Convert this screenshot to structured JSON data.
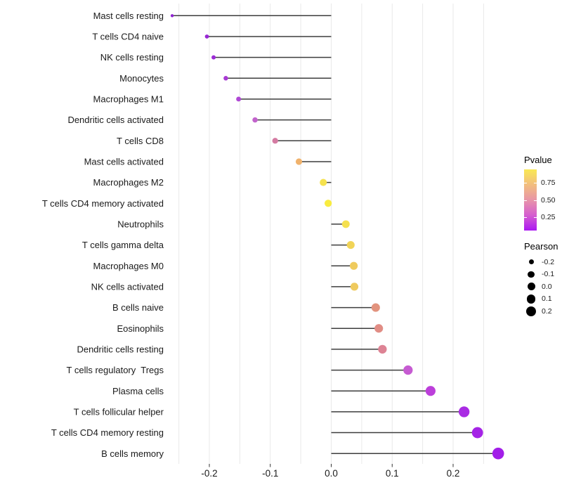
{
  "chart_data": {
    "type": "scatter",
    "subtype": "lollipop",
    "title": "",
    "xlabel": "",
    "ylabel": "",
    "xlim": [
      -0.285,
      0.3
    ],
    "grid": "vertical-only",
    "gridline_values": [
      -0.25,
      -0.2,
      -0.15,
      -0.1,
      -0.05,
      0.0,
      0.05,
      0.1,
      0.15,
      0.2,
      0.25
    ],
    "x_ticks": [
      -0.2,
      -0.1,
      0.0,
      0.1,
      0.2
    ],
    "x_tick_labels": [
      "-0.2",
      "-0.1",
      "0.0",
      "0.1",
      "0.2"
    ],
    "categories": [
      "Mast cells resting",
      "T cells CD4 naive",
      "NK cells resting",
      "Monocytes",
      "Macrophages M1",
      "Dendritic cells activated",
      "T cells CD8",
      "Mast cells activated",
      "Macrophages M2",
      "T cells CD4 memory activated",
      "Neutrophils",
      "T cells gamma delta",
      "Macrophages M0",
      "NK cells activated",
      "B cells naive",
      "Eosinophils",
      "Dendritic cells resting",
      "T cells regulatory  Tregs",
      "Plasma cells",
      "T cells follicular helper",
      "T cells CD4 memory resting",
      "B cells memory"
    ],
    "pearson": [
      -0.261,
      -0.204,
      -0.193,
      -0.173,
      -0.152,
      -0.125,
      -0.092,
      -0.053,
      -0.013,
      -0.005,
      0.024,
      0.032,
      0.037,
      0.038,
      0.073,
      0.078,
      0.084,
      0.126,
      0.163,
      0.218,
      0.24,
      0.274
    ],
    "dot_colors": [
      "#8F22D1",
      "#9827D4",
      "#9C2CD5",
      "#A83AD4",
      "#AF48D5",
      "#C263CC",
      "#D47BA2",
      "#F0B26C",
      "#F5E24E",
      "#F9EC40",
      "#F5E04F",
      "#F1D457",
      "#EFCB5E",
      "#EFCA5E",
      "#E2937E",
      "#E18D85",
      "#DD8394",
      "#C65BD2",
      "#BC3FDA",
      "#A92BE3",
      "#A524E6",
      "#A21EE8"
    ],
    "legend_position": "right"
  },
  "legends": {
    "pvalue": {
      "title": "Pvalue",
      "tick_labels": [
        "0.75",
        "0.50",
        "0.25"
      ],
      "tick_values": [
        0.75,
        0.5,
        0.25
      ],
      "range": [
        0.95,
        0.05
      ],
      "gradient_colors": [
        "#F9E854",
        "#F2BE7E",
        "#E895A8",
        "#D55ECF",
        "#AA18F2"
      ]
    },
    "pearson": {
      "title": "Pearson",
      "labels": [
        "-0.2",
        "-0.1",
        "0.0",
        "0.1",
        "0.2"
      ],
      "dot_radii": [
        3.5,
        4.6,
        5.5,
        6.3,
        7.0
      ]
    }
  },
  "style": {
    "grid_color": "#E9E9E9",
    "segment_color": "#3D3D3D",
    "axis_text_color": "#1A1A1A",
    "tick_color": "#333333"
  }
}
